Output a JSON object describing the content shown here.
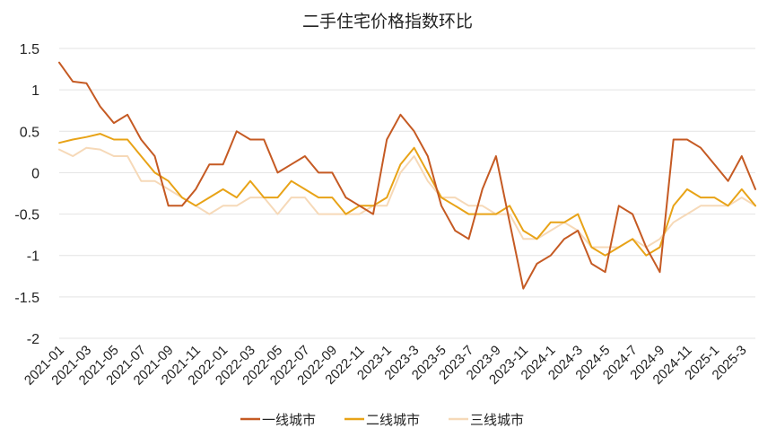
{
  "chart_data": {
    "type": "line",
    "title": "二手住宅价格指数环比",
    "xlabel": "",
    "ylabel": "",
    "ylim": [
      -2,
      1.5
    ],
    "yticks": [
      1.5,
      1,
      0.5,
      0,
      -0.5,
      -1,
      -1.5,
      -2
    ],
    "ytick_labels": [
      "1.5",
      "1",
      "0.5",
      "0",
      "-0.5",
      "-1",
      "-1.5",
      "-2"
    ],
    "x": [
      "2021-01",
      "2021-02",
      "2021-03",
      "2021-04",
      "2021-05",
      "2021-06",
      "2021-07",
      "2021-08",
      "2021-09",
      "2021-10",
      "2021-11",
      "2021-12",
      "2022-01",
      "2022-02",
      "2022-03",
      "2022-04",
      "2022-05",
      "2022-06",
      "2022-07",
      "2022-08",
      "2022-09",
      "2022-10",
      "2022-11",
      "2022-12",
      "2023-1",
      "2023-2",
      "2023-3",
      "2023-4",
      "2023-5",
      "2023-6",
      "2023-7",
      "2023-8",
      "2023-9",
      "2023-10",
      "2023-11",
      "2023-12",
      "2024-1",
      "2024-2",
      "2024-3",
      "2024-4",
      "2024-5",
      "2024-6",
      "2024-7",
      "2024-8",
      "2024-9",
      "2024-10",
      "2024-11",
      "2024-12",
      "2025-1",
      "2025-2",
      "2025-3",
      "2025-4"
    ],
    "xtick_labels": [
      "2021-01",
      "2021-03",
      "2021-05",
      "2021-07",
      "2021-09",
      "2021-11",
      "2022-01",
      "2022-03",
      "2022-05",
      "2022-07",
      "2022-09",
      "2022-11",
      "2023-1",
      "2023-3",
      "2023-5",
      "2023-7",
      "2023-9",
      "2023-11",
      "2024-1",
      "2024-3",
      "2024-5",
      "2024-7",
      "2024-9",
      "2024-11",
      "2025-1",
      "2025-3"
    ],
    "grid": true,
    "legend_position": "bottom",
    "series": [
      {
        "name": "一线城市",
        "color": "#C55A23",
        "values": [
          1.33,
          1.1,
          1.08,
          0.8,
          0.6,
          0.7,
          0.4,
          0.2,
          -0.4,
          -0.4,
          -0.2,
          0.1,
          0.1,
          0.5,
          0.4,
          0.4,
          0.0,
          0.1,
          0.2,
          0.0,
          0.0,
          -0.3,
          -0.4,
          -0.5,
          0.4,
          0.7,
          0.5,
          0.2,
          -0.4,
          -0.7,
          -0.8,
          -0.2,
          0.2,
          -0.6,
          -1.4,
          -1.1,
          -1.0,
          -0.8,
          -0.7,
          -1.1,
          -1.2,
          -0.4,
          -0.5,
          -0.9,
          -1.2,
          0.4,
          0.4,
          0.3,
          0.1,
          -0.1,
          0.2,
          -0.2
        ]
      },
      {
        "name": "二线城市",
        "color": "#E8A317",
        "values": [
          0.36,
          0.4,
          0.43,
          0.47,
          0.4,
          0.4,
          0.2,
          0.0,
          -0.1,
          -0.3,
          -0.4,
          -0.3,
          -0.2,
          -0.3,
          -0.1,
          -0.3,
          -0.3,
          -0.1,
          -0.2,
          -0.3,
          -0.3,
          -0.5,
          -0.4,
          -0.4,
          -0.3,
          0.1,
          0.3,
          0.0,
          -0.3,
          -0.4,
          -0.5,
          -0.5,
          -0.5,
          -0.4,
          -0.7,
          -0.8,
          -0.6,
          -0.6,
          -0.5,
          -0.9,
          -1.0,
          -0.9,
          -0.8,
          -1.0,
          -0.9,
          -0.4,
          -0.2,
          -0.3,
          -0.3,
          -0.4,
          -0.2,
          -0.4
        ]
      },
      {
        "name": "三线城市",
        "color": "#F6D9B8",
        "values": [
          0.28,
          0.2,
          0.3,
          0.28,
          0.2,
          0.2,
          -0.1,
          -0.1,
          -0.2,
          -0.3,
          -0.4,
          -0.5,
          -0.4,
          -0.4,
          -0.3,
          -0.3,
          -0.5,
          -0.3,
          -0.3,
          -0.5,
          -0.5,
          -0.5,
          -0.5,
          -0.4,
          -0.4,
          0.0,
          0.2,
          -0.1,
          -0.3,
          -0.3,
          -0.4,
          -0.4,
          -0.5,
          -0.5,
          -0.8,
          -0.8,
          -0.7,
          -0.6,
          -0.7,
          -0.9,
          -0.9,
          -0.9,
          -0.8,
          -0.9,
          -0.8,
          -0.6,
          -0.5,
          -0.4,
          -0.4,
          -0.4,
          -0.3,
          -0.4
        ]
      }
    ]
  }
}
